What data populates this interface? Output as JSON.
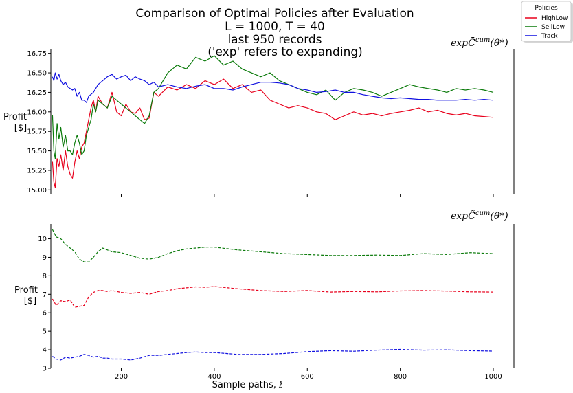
{
  "chart_data": {
    "type": "line",
    "title_lines": [
      "Comparison of Optimal Policies after Evaluation",
      "L = 1000, T = 40",
      "last 950 records",
      "('exp' refers to expanding)"
    ],
    "xlabel": "Sample paths, ℓ",
    "legend": {
      "title": "Policies",
      "placement": "top-right",
      "entries": [
        {
          "name": "HighLow",
          "color": "#e8001c"
        },
        {
          "name": "SellLow",
          "color": "#0a7a0a"
        },
        {
          "name": "Track",
          "color": "#1010e0"
        }
      ]
    },
    "xlim": [
      50,
      1000
    ],
    "xticks": [
      200,
      400,
      600,
      800,
      1000
    ],
    "panels": [
      {
        "name": "top",
        "title_main": "exp",
        "title_sym": "C̄",
        "title_sup": "cum",
        "title_arg": "(θ*)",
        "ylabel": "Profit",
        "ylabel_unit": "[$]",
        "ylim": [
          14.95,
          16.8
        ],
        "yticks": [
          "15.00",
          "15.25",
          "15.50",
          "15.75",
          "16.00",
          "16.25",
          "16.50",
          "16.75"
        ],
        "dashed": false,
        "series": [
          {
            "name": "HighLow",
            "color": "#e8001c",
            "x": [
              52,
              55,
              58,
              62,
              66,
              70,
              75,
              80,
              85,
              90,
              95,
              100,
              105,
              110,
              115,
              120,
              125,
              130,
              135,
              140,
              145,
              150,
              160,
              170,
              180,
              190,
              200,
              210,
              220,
              230,
              240,
              250,
              260,
              270,
              280,
              300,
              320,
              340,
              360,
              380,
              400,
              420,
              440,
              460,
              480,
              500,
              520,
              540,
              560,
              580,
              600,
              620,
              640,
              660,
              680,
              700,
              720,
              740,
              760,
              780,
              800,
              820,
              840,
              860,
              880,
              900,
              920,
              940,
              960,
              980,
              1000
            ],
            "values": [
              15.36,
              15.1,
              15.03,
              15.4,
              15.3,
              15.45,
              15.25,
              15.5,
              15.3,
              15.2,
              15.15,
              15.35,
              15.5,
              15.4,
              15.55,
              15.6,
              15.75,
              15.9,
              16.05,
              16.15,
              16.0,
              16.2,
              16.1,
              16.05,
              16.25,
              16.0,
              15.95,
              16.1,
              16.0,
              15.98,
              16.05,
              15.9,
              15.92,
              16.25,
              16.2,
              16.32,
              16.28,
              16.35,
              16.3,
              16.4,
              16.35,
              16.42,
              16.3,
              16.35,
              16.25,
              16.28,
              16.15,
              16.1,
              16.05,
              16.08,
              16.05,
              16.0,
              15.98,
              15.9,
              15.95,
              16.0,
              15.96,
              15.98,
              15.95,
              15.98,
              16.0,
              16.02,
              16.05,
              16.0,
              16.02,
              15.98,
              15.96,
              15.98,
              15.95,
              15.94,
              15.93
            ]
          },
          {
            "name": "SellLow",
            "color": "#0a7a0a",
            "x": [
              52,
              55,
              58,
              62,
              66,
              70,
              75,
              80,
              85,
              90,
              95,
              100,
              105,
              110,
              115,
              120,
              125,
              130,
              135,
              140,
              145,
              150,
              160,
              170,
              180,
              190,
              200,
              210,
              220,
              230,
              240,
              250,
              260,
              270,
              280,
              290,
              300,
              320,
              340,
              360,
              380,
              400,
              420,
              440,
              460,
              480,
              500,
              520,
              540,
              560,
              580,
              600,
              620,
              640,
              660,
              680,
              700,
              720,
              740,
              760,
              780,
              800,
              820,
              840,
              860,
              880,
              900,
              920,
              940,
              960,
              980,
              1000
            ],
            "values": [
              15.96,
              15.5,
              15.4,
              15.85,
              15.65,
              15.8,
              15.55,
              15.7,
              15.5,
              15.5,
              15.45,
              15.6,
              15.7,
              15.6,
              15.45,
              15.5,
              15.7,
              15.8,
              15.9,
              16.1,
              16.0,
              16.15,
              16.1,
              16.05,
              16.2,
              16.15,
              16.1,
              16.05,
              16.0,
              15.95,
              15.9,
              15.85,
              15.95,
              16.25,
              16.3,
              16.4,
              16.5,
              16.6,
              16.55,
              16.7,
              16.65,
              16.72,
              16.6,
              16.65,
              16.55,
              16.5,
              16.45,
              16.5,
              16.4,
              16.35,
              16.3,
              16.25,
              16.22,
              16.28,
              16.15,
              16.25,
              16.3,
              16.28,
              16.25,
              16.2,
              16.25,
              16.3,
              16.35,
              16.32,
              16.3,
              16.28,
              16.25,
              16.3,
              16.28,
              16.3,
              16.28,
              16.25
            ]
          },
          {
            "name": "Track",
            "color": "#1010e0",
            "x": [
              52,
              55,
              58,
              62,
              66,
              70,
              75,
              80,
              85,
              90,
              95,
              100,
              105,
              110,
              115,
              120,
              125,
              130,
              140,
              150,
              160,
              170,
              180,
              190,
              200,
              210,
              220,
              230,
              240,
              250,
              260,
              270,
              280,
              300,
              320,
              340,
              360,
              380,
              400,
              420,
              440,
              460,
              480,
              500,
              520,
              540,
              560,
              580,
              600,
              620,
              640,
              660,
              680,
              700,
              720,
              740,
              760,
              780,
              800,
              820,
              840,
              860,
              880,
              900,
              920,
              940,
              960,
              980,
              1000
            ],
            "values": [
              16.45,
              16.4,
              16.5,
              16.42,
              16.48,
              16.4,
              16.35,
              16.38,
              16.32,
              16.3,
              16.28,
              16.3,
              16.2,
              16.25,
              16.15,
              16.15,
              16.12,
              16.2,
              16.25,
              16.35,
              16.4,
              16.45,
              16.48,
              16.42,
              16.45,
              16.47,
              16.4,
              16.45,
              16.42,
              16.4,
              16.35,
              16.38,
              16.32,
              16.35,
              16.32,
              16.3,
              16.33,
              16.35,
              16.3,
              16.3,
              16.28,
              16.32,
              16.35,
              16.38,
              16.38,
              16.37,
              16.35,
              16.3,
              16.28,
              16.25,
              16.26,
              16.28,
              16.25,
              16.25,
              16.22,
              16.2,
              16.18,
              16.17,
              16.18,
              16.17,
              16.16,
              16.16,
              16.15,
              16.15,
              16.15,
              16.16,
              16.15,
              16.16,
              16.15
            ]
          }
        ]
      },
      {
        "name": "bottom",
        "title_main": "exp",
        "title_sym": "C̃",
        "title_sup": "cum",
        "title_arg": "(θ*)",
        "ylabel": "Profit",
        "ylabel_unit": "[$]",
        "ylim": [
          3.0,
          10.8
        ],
        "yticks": [
          "3",
          "4",
          "5",
          "6",
          "7",
          "8",
          "9",
          "10"
        ],
        "dashed": true,
        "series": [
          {
            "name": "SellLow",
            "color": "#0a7a0a",
            "x": [
              52,
              60,
              70,
              80,
              90,
              100,
              110,
              120,
              130,
              140,
              150,
              160,
              170,
              180,
              200,
              220,
              240,
              260,
              280,
              300,
              320,
              340,
              360,
              380,
              400,
              450,
              500,
              550,
              600,
              650,
              700,
              750,
              800,
              850,
              900,
              950,
              1000
            ],
            "values": [
              10.5,
              10.1,
              10.0,
              9.7,
              9.5,
              9.3,
              8.9,
              8.75,
              8.75,
              9.0,
              9.3,
              9.5,
              9.4,
              9.3,
              9.25,
              9.1,
              8.95,
              8.9,
              9.0,
              9.2,
              9.35,
              9.45,
              9.5,
              9.55,
              9.55,
              9.4,
              9.3,
              9.2,
              9.15,
              9.1,
              9.1,
              9.12,
              9.1,
              9.2,
              9.15,
              9.25,
              9.2
            ]
          },
          {
            "name": "HighLow",
            "color": "#e8001c",
            "x": [
              52,
              60,
              70,
              80,
              90,
              100,
              110,
              120,
              130,
              140,
              150,
              160,
              170,
              180,
              200,
              220,
              240,
              260,
              280,
              300,
              320,
              340,
              360,
              380,
              400,
              450,
              500,
              550,
              600,
              650,
              700,
              750,
              800,
              850,
              900,
              950,
              1000
            ],
            "values": [
              6.75,
              6.4,
              6.65,
              6.6,
              6.7,
              6.3,
              6.35,
              6.4,
              6.85,
              7.1,
              7.2,
              7.2,
              7.15,
              7.2,
              7.1,
              7.05,
              7.1,
              7.0,
              7.15,
              7.2,
              7.3,
              7.35,
              7.4,
              7.38,
              7.42,
              7.3,
              7.2,
              7.15,
              7.2,
              7.12,
              7.15,
              7.13,
              7.18,
              7.2,
              7.17,
              7.13,
              7.12
            ]
          },
          {
            "name": "Track",
            "color": "#1010e0",
            "x": [
              52,
              60,
              70,
              80,
              90,
              100,
              110,
              120,
              130,
              140,
              150,
              160,
              170,
              180,
              200,
              220,
              240,
              260,
              280,
              300,
              320,
              340,
              360,
              380,
              400,
              450,
              500,
              550,
              600,
              650,
              700,
              750,
              800,
              850,
              900,
              950,
              1000
            ],
            "values": [
              3.65,
              3.5,
              3.45,
              3.6,
              3.55,
              3.6,
              3.65,
              3.75,
              3.7,
              3.6,
              3.65,
              3.55,
              3.55,
              3.5,
              3.5,
              3.45,
              3.55,
              3.7,
              3.7,
              3.75,
              3.8,
              3.85,
              3.88,
              3.85,
              3.85,
              3.75,
              3.75,
              3.8,
              3.9,
              3.95,
              3.92,
              3.98,
              4.02,
              3.98,
              4.0,
              3.95,
              3.93
            ]
          }
        ]
      }
    ]
  }
}
